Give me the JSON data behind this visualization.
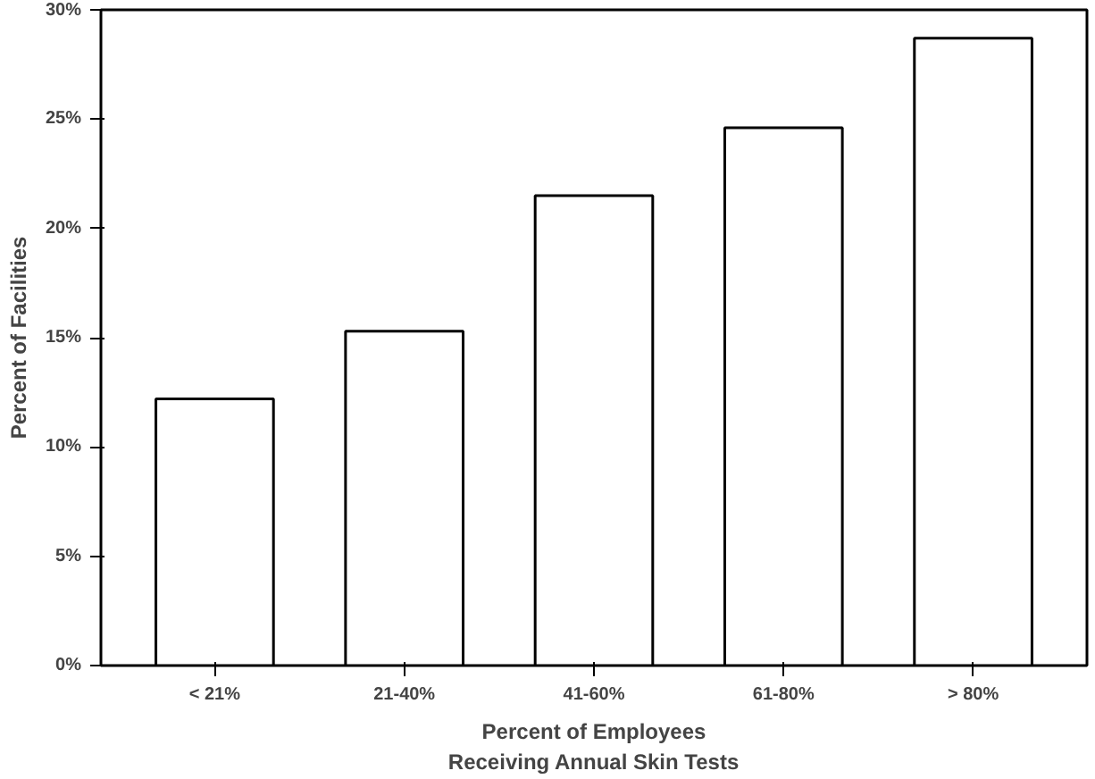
{
  "chart_data": {
    "type": "bar",
    "xlabel": "Percent of Employees\nReceiving Annual Skin Tests",
    "ylabel": "Percent of Facilities",
    "categories": [
      "< 21%",
      "21-40%",
      "41-60%",
      "61-80%",
      "> 80%"
    ],
    "values": [
      12.2,
      15.3,
      21.5,
      24.6,
      28.7
    ],
    "color": "#ffffff",
    "ylim": [
      0,
      30
    ],
    "yticks": [
      {
        "value": 0,
        "label": "0%"
      },
      {
        "value": 5,
        "label": "5%"
      },
      {
        "value": 10,
        "label": "10%"
      },
      {
        "value": 15,
        "label": "15%"
      },
      {
        "value": 20,
        "label": "20%"
      },
      {
        "value": 25,
        "label": "25%"
      },
      {
        "value": 30,
        "label": "30%"
      }
    ],
    "grid": false
  }
}
